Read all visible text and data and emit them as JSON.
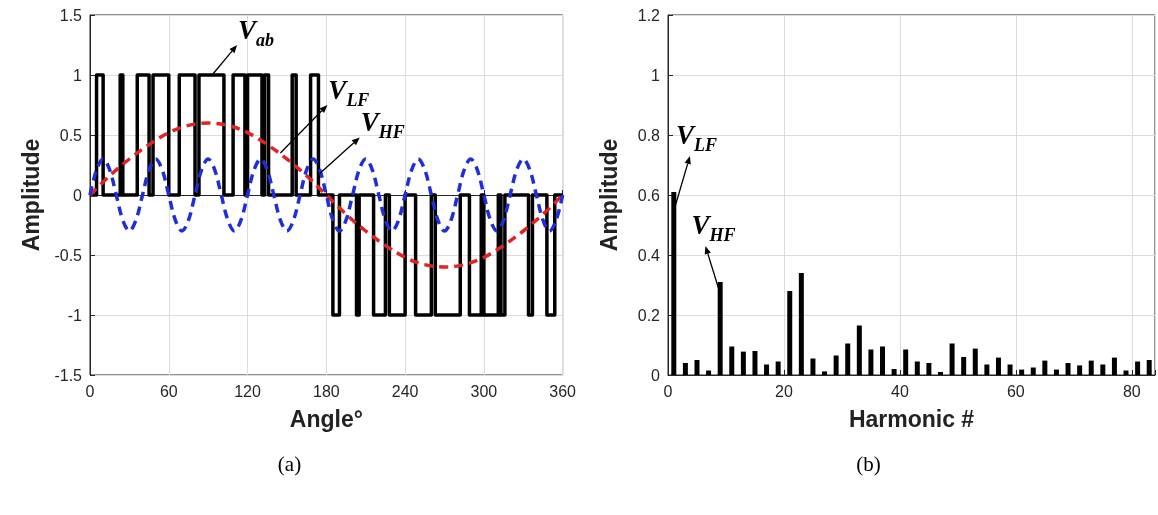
{
  "chart_data": [
    {
      "type": "line",
      "xlabel": "Angle°",
      "ylabel": "Amplitude",
      "xlim": [
        0,
        360
      ],
      "ylim": [
        -1.5,
        1.5
      ],
      "xticks": [
        0,
        60,
        120,
        180,
        240,
        300,
        360
      ],
      "yticks": [
        -1.5,
        -1,
        -0.5,
        0,
        0.5,
        1,
        1.5
      ],
      "grid": true,
      "marker": "none",
      "series": [
        {
          "color": "#000000",
          "line_style": "solid",
          "x": [
            0,
            5,
            5,
            10,
            10,
            23,
            23,
            25,
            25,
            36,
            36,
            45,
            45,
            48,
            48,
            60,
            60,
            68,
            68,
            80,
            80,
            83,
            83,
            102,
            102,
            109,
            109,
            118,
            118,
            120,
            120,
            131,
            131,
            133,
            133,
            136,
            136,
            154,
            154,
            157,
            157,
            168,
            168,
            174,
            174,
            185,
            185,
            190,
            190,
            203,
            203,
            205,
            205,
            216,
            216,
            225,
            225,
            228,
            228,
            240,
            240,
            248,
            248,
            260,
            260,
            263,
            263,
            282,
            282,
            289,
            289,
            298,
            298,
            300,
            300,
            311,
            311,
            313,
            313,
            316,
            316,
            334,
            334,
            337,
            337,
            348,
            348,
            354,
            354,
            360
          ],
          "values": [
            0,
            0,
            1,
            1,
            0,
            0,
            1,
            1,
            0,
            0,
            1,
            1,
            0,
            0,
            1,
            1,
            0,
            0,
            1,
            1,
            0,
            0,
            1,
            1,
            0,
            0,
            1,
            1,
            0,
            0,
            1,
            1,
            0,
            0,
            1,
            1,
            0,
            0,
            1,
            1,
            0,
            0,
            1,
            1,
            0,
            0,
            -1,
            -1,
            0,
            0,
            -1,
            -1,
            0,
            0,
            -1,
            -1,
            0,
            0,
            -1,
            -1,
            0,
            0,
            -1,
            -1,
            0,
            0,
            -1,
            -1,
            0,
            0,
            -1,
            -1,
            0,
            0,
            -1,
            -1,
            0,
            0,
            -1,
            -1,
            0,
            0,
            -1,
            -1,
            0,
            0,
            -1,
            -1,
            0,
            0
          ]
        },
        {
          "color": "#e02424",
          "line_style": "dashed",
          "x": [
            0,
            15,
            30,
            45,
            60,
            75,
            90,
            105,
            120,
            135,
            150,
            165,
            180,
            195,
            210,
            225,
            240,
            255,
            270,
            285,
            300,
            315,
            330,
            345,
            360
          ],
          "values": [
            0,
            0.16,
            0.3,
            0.42,
            0.52,
            0.58,
            0.6,
            0.58,
            0.52,
            0.42,
            0.3,
            0.16,
            0,
            -0.16,
            -0.3,
            -0.42,
            -0.52,
            -0.58,
            -0.6,
            -0.58,
            -0.52,
            -0.42,
            -0.3,
            -0.16,
            0
          ]
        },
        {
          "color": "#1f2ed6",
          "line_style": "dashed",
          "x": [
            0,
            5,
            10,
            15,
            20,
            25,
            30,
            35,
            40,
            45,
            50,
            55,
            60,
            65,
            70,
            75,
            80,
            85,
            90,
            95,
            100,
            105,
            110,
            115,
            120,
            125,
            130,
            135,
            140,
            145,
            150,
            155,
            160,
            165,
            170,
            175,
            180,
            185,
            190,
            195,
            200,
            205,
            210,
            215,
            220,
            225,
            230,
            235,
            240,
            245,
            250,
            255,
            260,
            265,
            270,
            275,
            280,
            285,
            290,
            295,
            300,
            305,
            310,
            315,
            320,
            325,
            330,
            335,
            340,
            345,
            350,
            355,
            360
          ],
          "values": [
            0,
            0.21,
            0.3,
            0.21,
            0,
            -0.21,
            -0.3,
            -0.21,
            0,
            0.21,
            0.3,
            0.21,
            0,
            -0.21,
            -0.3,
            -0.21,
            0,
            0.21,
            0.3,
            0.21,
            0,
            -0.21,
            -0.3,
            -0.21,
            0,
            0.21,
            0.3,
            0.21,
            0,
            -0.21,
            -0.3,
            -0.21,
            0,
            0.21,
            0.3,
            0.21,
            0,
            -0.21,
            -0.3,
            -0.21,
            0,
            0.21,
            0.3,
            0.21,
            0,
            -0.21,
            -0.3,
            -0.21,
            0,
            0.21,
            0.3,
            0.21,
            0,
            -0.21,
            -0.3,
            -0.21,
            0,
            0.21,
            0.3,
            0.21,
            0,
            -0.21,
            -0.3,
            -0.21,
            0,
            0.21,
            0.3,
            0.21,
            0,
            -0.21,
            -0.3,
            -0.21,
            0
          ]
        }
      ],
      "annotations": [
        {
          "text": "V$_{ab}$",
          "x": 93,
          "y": 1
        },
        {
          "text": "V$_{LF}$",
          "x": 145,
          "y": 0.35
        },
        {
          "text": "V$_{HF}$",
          "x": 175,
          "y": 0.18
        },
        "(a)"
      ]
    },
    {
      "type": "bar",
      "xlabel": "Harmonic #",
      "ylabel": "Amplitude",
      "xlim": [
        0,
        84
      ],
      "ylim": [
        0,
        1.2
      ],
      "xticks": [
        0,
        20,
        40,
        60,
        80
      ],
      "yticks": [
        0,
        0.2,
        0.4,
        0.6,
        0.8,
        1,
        1.2
      ],
      "grid": true,
      "color": "#000000",
      "x": [
        1,
        3,
        5,
        7,
        9,
        11,
        13,
        15,
        17,
        19,
        21,
        23,
        25,
        27,
        29,
        31,
        33,
        35,
        37,
        39,
        41,
        43,
        45,
        47,
        49,
        51,
        53,
        55,
        57,
        59,
        61,
        63,
        65,
        67,
        69,
        71,
        73,
        75,
        77,
        79,
        81,
        83
      ],
      "values": [
        0.61,
        0.04,
        0.05,
        0.015,
        0.31,
        0.095,
        0.078,
        0.08,
        0.035,
        0.045,
        0.28,
        0.34,
        0.055,
        0.012,
        0.065,
        0.105,
        0.165,
        0.085,
        0.095,
        0.02,
        0.085,
        0.045,
        0.04,
        0.01,
        0.105,
        0.06,
        0.088,
        0.035,
        0.058,
        0.035,
        0.018,
        0.025,
        0.048,
        0.018,
        0.04,
        0.032,
        0.048,
        0.035,
        0.058,
        0.015,
        0.045,
        0.05
      ],
      "annotations": [
        {
          "text": "V$_{LF}$",
          "x": 1.2,
          "y": 0.56
        },
        {
          "text": "V$_{HF}$",
          "x": 8.7,
          "y": 0.29
        },
        "(b)"
      ]
    }
  ]
}
